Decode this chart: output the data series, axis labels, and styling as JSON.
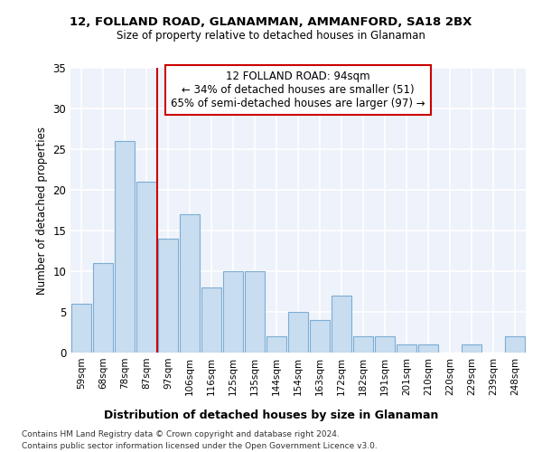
{
  "title1": "12, FOLLAND ROAD, GLANAMMAN, AMMANFORD, SA18 2BX",
  "title2": "Size of property relative to detached houses in Glanaman",
  "xlabel": "Distribution of detached houses by size in Glanaman",
  "ylabel": "Number of detached properties",
  "categories": [
    "59sqm",
    "68sqm",
    "78sqm",
    "87sqm",
    "97sqm",
    "106sqm",
    "116sqm",
    "125sqm",
    "135sqm",
    "144sqm",
    "154sqm",
    "163sqm",
    "172sqm",
    "182sqm",
    "191sqm",
    "201sqm",
    "210sqm",
    "220sqm",
    "229sqm",
    "239sqm",
    "248sqm"
  ],
  "values": [
    6,
    11,
    26,
    21,
    14,
    17,
    8,
    10,
    10,
    2,
    5,
    4,
    7,
    2,
    2,
    1,
    1,
    0,
    1,
    0,
    2
  ],
  "bar_color": "#c9ddf0",
  "bar_edge_color": "#7badd4",
  "vline_color": "#cc0000",
  "annotation_text": "12 FOLLAND ROAD: 94sqm\n← 34% of detached houses are smaller (51)\n65% of semi-detached houses are larger (97) →",
  "annotation_box_color": "#ffffff",
  "annotation_border_color": "#cc0000",
  "background_color": "#eef2fa",
  "grid_color": "#ffffff",
  "ylim": [
    0,
    35
  ],
  "yticks": [
    0,
    5,
    10,
    15,
    20,
    25,
    30,
    35
  ],
  "footer1": "Contains HM Land Registry data © Crown copyright and database right 2024.",
  "footer2": "Contains public sector information licensed under the Open Government Licence v3.0."
}
